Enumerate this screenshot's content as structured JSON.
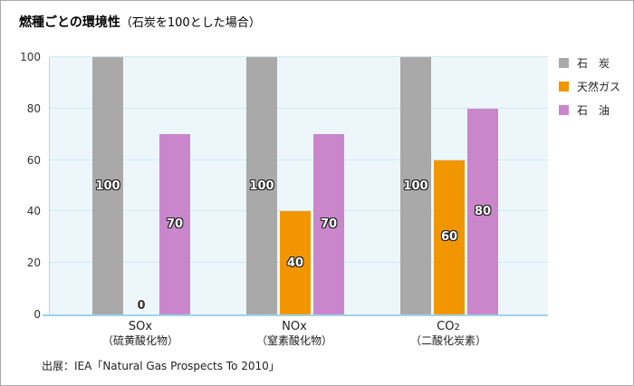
{
  "title": {
    "main": "燃種ごとの環境性",
    "annotation": "（石炭を100とした場合）"
  },
  "source": "出展：IEA「Natural Gas Prospects To 2010」",
  "chart_data": {
    "type": "bar",
    "title": "燃種ごとの環境性（石炭を100とした場合）",
    "categories": [
      {
        "main": "SOx",
        "sub": "",
        "sublabel": "（硫黄酸化物）"
      },
      {
        "main": "NOx",
        "sub": "",
        "sublabel": "（窒素酸化物）"
      },
      {
        "main": "CO",
        "sub": "2",
        "sublabel": "（二酸化炭素）"
      }
    ],
    "series": [
      {
        "name": "石　炭",
        "color": "#a9a9a9",
        "values": [
          100,
          100,
          100
        ]
      },
      {
        "name": "天然ガス",
        "color": "#f29600",
        "values": [
          0,
          40,
          60
        ]
      },
      {
        "name": "石　油",
        "color": "#c986cb",
        "values": [
          70,
          70,
          80
        ]
      }
    ],
    "yticks": [
      0,
      20,
      40,
      60,
      80,
      100
    ],
    "ylim": [
      0,
      100
    ],
    "grid": true,
    "legend_position": "top-right",
    "plot_background": "#edf6fb",
    "gridline_color": "#cdeaf6",
    "axis_color": "#9ed4ec"
  }
}
